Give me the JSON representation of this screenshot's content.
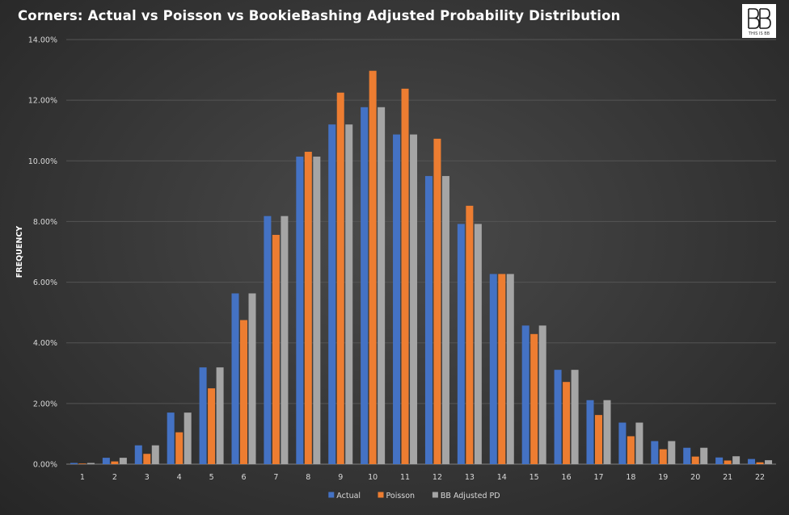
{
  "title": "Corners: Actual vs Poisson vs BookieBashing Adjusted Probability Distribution",
  "logo": {
    "text": "THIS IS BB",
    "icon": "bb-logo-icon"
  },
  "chart_data": {
    "type": "bar",
    "title": "Corners: Actual vs Poisson vs BookieBashing Adjusted Probability Distribution",
    "xlabel": "",
    "ylabel": "FREQUENCY",
    "ylim": [
      0,
      14
    ],
    "yticks": [
      "0.00%",
      "2.00%",
      "4.00%",
      "6.00%",
      "8.00%",
      "10.00%",
      "12.00%",
      "14.00%"
    ],
    "grid": true,
    "legend_position": "bottom",
    "categories": [
      "1",
      "2",
      "3",
      "4",
      "5",
      "6",
      "7",
      "8",
      "9",
      "10",
      "11",
      "12",
      "13",
      "14",
      "15",
      "16",
      "17",
      "18",
      "19",
      "20",
      "21",
      "22"
    ],
    "series": [
      {
        "name": "Actual",
        "color": "#4472c4",
        "values": [
          0.04,
          0.21,
          0.62,
          1.7,
          3.19,
          5.63,
          8.18,
          10.14,
          11.2,
          11.77,
          10.87,
          9.5,
          7.92,
          6.27,
          4.57,
          3.11,
          2.11,
          1.37,
          0.76,
          0.54,
          0.22,
          0.17
        ]
      },
      {
        "name": "Poisson",
        "color": "#ed7d31",
        "values": [
          0.02,
          0.09,
          0.34,
          1.05,
          2.5,
          4.75,
          7.56,
          10.3,
          12.25,
          12.97,
          12.38,
          10.73,
          8.52,
          6.27,
          4.29,
          2.71,
          1.62,
          0.92,
          0.49,
          0.25,
          0.12,
          0.06
        ]
      },
      {
        "name": "BB Adjusted PD",
        "color": "#a5a5a5",
        "values": [
          0.04,
          0.21,
          0.62,
          1.7,
          3.19,
          5.63,
          8.18,
          10.14,
          11.2,
          11.77,
          10.87,
          9.5,
          7.92,
          6.27,
          4.57,
          3.11,
          2.11,
          1.37,
          0.76,
          0.54,
          0.26,
          0.13
        ]
      }
    ]
  }
}
